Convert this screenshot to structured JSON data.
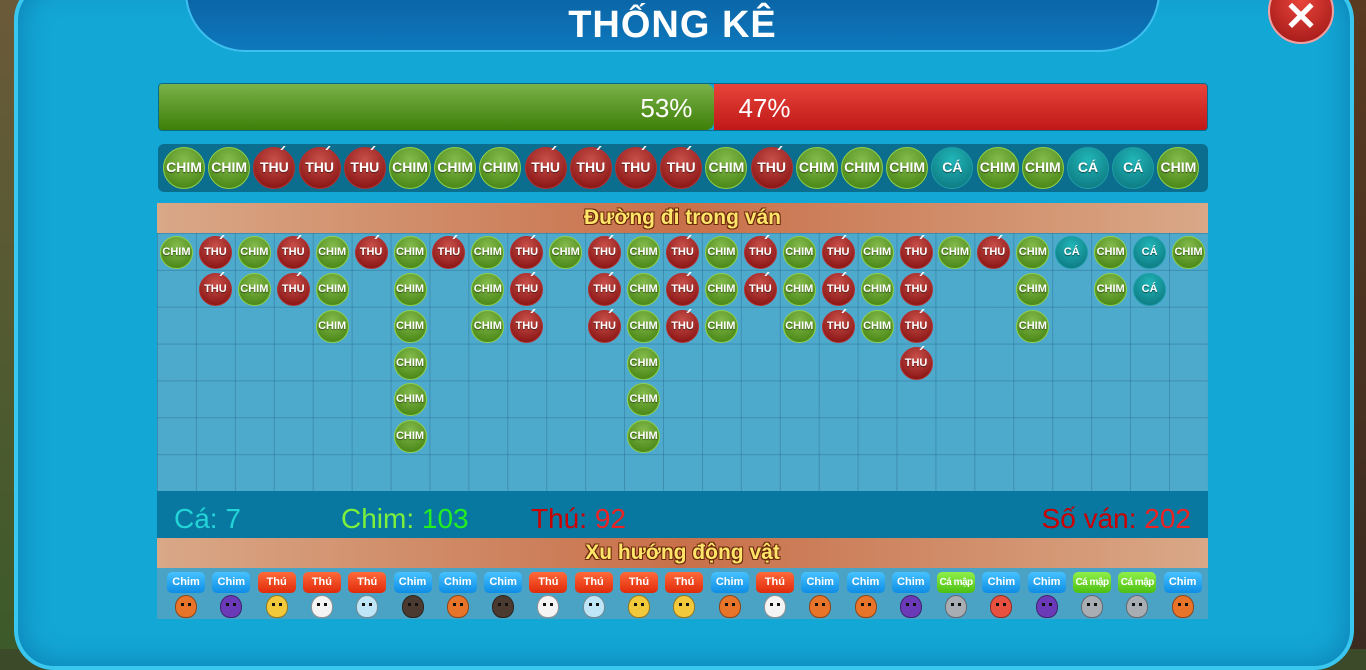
{
  "title": "THỐNG KÊ",
  "close_icon": "close-x-icon",
  "progress": {
    "chim_percent": 53,
    "thu_percent": 47,
    "chim_label": "53%",
    "thu_label": "47%"
  },
  "labels": {
    "CHIM": "CHIM",
    "THU": "THÚ",
    "CA": "CÁ"
  },
  "recent_results": [
    "CHIM",
    "CHIM",
    "THU",
    "THU",
    "THU",
    "CHIM",
    "CHIM",
    "CHIM",
    "THU",
    "THU",
    "THU",
    "THU",
    "CHIM",
    "THU",
    "CHIM",
    "CHIM",
    "CHIM",
    "CA",
    "CHIM",
    "CHIM",
    "CA",
    "CA",
    "CHIM"
  ],
  "road": {
    "title": "Đường đi trong ván",
    "columns": [
      [
        "CHIM"
      ],
      [
        "THU",
        "THU"
      ],
      [
        "CHIM",
        "CHIM"
      ],
      [
        "THU",
        "THU"
      ],
      [
        "CHIM",
        "CHIM",
        "CHIM"
      ],
      [
        "THU"
      ],
      [
        "CHIM",
        "CHIM",
        "CHIM",
        "CHIM",
        "CHIM",
        "CHIM"
      ],
      [
        "THU"
      ],
      [
        "CHIM",
        "CHIM",
        "CHIM"
      ],
      [
        "THU",
        "THU",
        "THU"
      ],
      [
        "CHIM"
      ],
      [
        "THU",
        "THU",
        "THU"
      ],
      [
        "CHIM",
        "CHIM",
        "CHIM",
        "CHIM",
        "CHIM",
        "CHIM"
      ],
      [
        "THU",
        "THU",
        "THU"
      ],
      [
        "CHIM",
        "CHIM",
        "CHIM"
      ],
      [
        "THU",
        "THU"
      ],
      [
        "CHIM",
        "CHIM",
        "CHIM"
      ],
      [
        "THU",
        "THU",
        "THU"
      ],
      [
        "CHIM",
        "CHIM",
        "CHIM"
      ],
      [
        "THU",
        "THU",
        "THU",
        "THU"
      ],
      [
        "CHIM"
      ],
      [
        "THU"
      ],
      [
        "CHIM",
        "CHIM",
        "CHIM"
      ],
      [
        "CA"
      ],
      [
        "CHIM",
        "CHIM"
      ],
      [
        "CA",
        "CA"
      ],
      [
        "CHIM"
      ]
    ]
  },
  "stats": {
    "ca_label": "Cá: ",
    "ca_value": "7",
    "chim_label": "Chim: ",
    "chim_value": "103",
    "thu_label": "Thú: ",
    "thu_value": "92",
    "rounds_label": "Số ván: ",
    "rounds_value": "202"
  },
  "colors": {
    "ca": "#22d3d8",
    "chim": "#22ee22",
    "thu": "#dd1111"
  },
  "trend": {
    "title": "Xu hướng động vật",
    "tag_labels": {
      "Chim": "Chim",
      "Thu": "Thú",
      "Ca": "Cá mập"
    },
    "items": [
      {
        "type": "Chim",
        "animal": "rooster"
      },
      {
        "type": "Chim",
        "animal": "owl"
      },
      {
        "type": "Thu",
        "animal": "monkey"
      },
      {
        "type": "Thu",
        "animal": "panda"
      },
      {
        "type": "Thu",
        "animal": "rabbit"
      },
      {
        "type": "Chim",
        "animal": "eagle"
      },
      {
        "type": "Chim",
        "animal": "rooster"
      },
      {
        "type": "Chim",
        "animal": "eagle"
      },
      {
        "type": "Thu",
        "animal": "panda"
      },
      {
        "type": "Thu",
        "animal": "rabbit"
      },
      {
        "type": "Thu",
        "animal": "monkey"
      },
      {
        "type": "Thu",
        "animal": "monkey"
      },
      {
        "type": "Chim",
        "animal": "rooster"
      },
      {
        "type": "Thu",
        "animal": "panda"
      },
      {
        "type": "Chim",
        "animal": "rooster"
      },
      {
        "type": "Chim",
        "animal": "rooster"
      },
      {
        "type": "Chim",
        "animal": "owl"
      },
      {
        "type": "Ca",
        "animal": "shark"
      },
      {
        "type": "Chim",
        "animal": "pigeon"
      },
      {
        "type": "Chim",
        "animal": "owl"
      },
      {
        "type": "Ca",
        "animal": "shark"
      },
      {
        "type": "Ca",
        "animal": "shark"
      },
      {
        "type": "Chim",
        "animal": "rooster"
      }
    ]
  }
}
